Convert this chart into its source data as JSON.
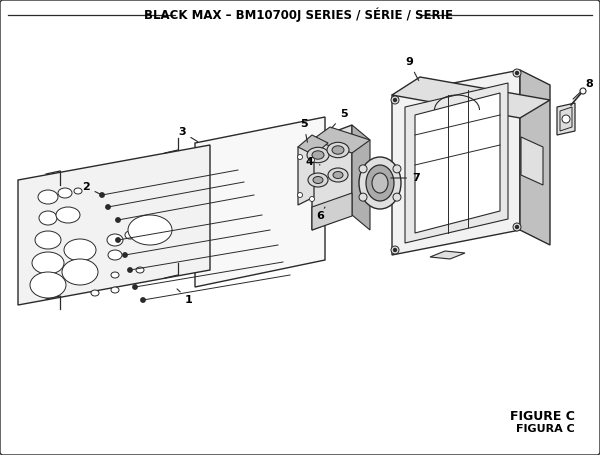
{
  "title": "BLACK MAX – BM10700J SERIES / SÉRIE / SERIE",
  "figure_label": "FIGURE C",
  "figura_label": "FIGURA C",
  "bg_color": "#ffffff",
  "line_color": "#2a2a2a",
  "light_fill": "#f2f2f2",
  "mid_fill": "#e0e0e0",
  "dark_fill": "#c0c0c0",
  "white_fill": "#ffffff",
  "title_fontsize": 8.5,
  "label_fontsize": 8,
  "figure_label_fontsize": 9
}
